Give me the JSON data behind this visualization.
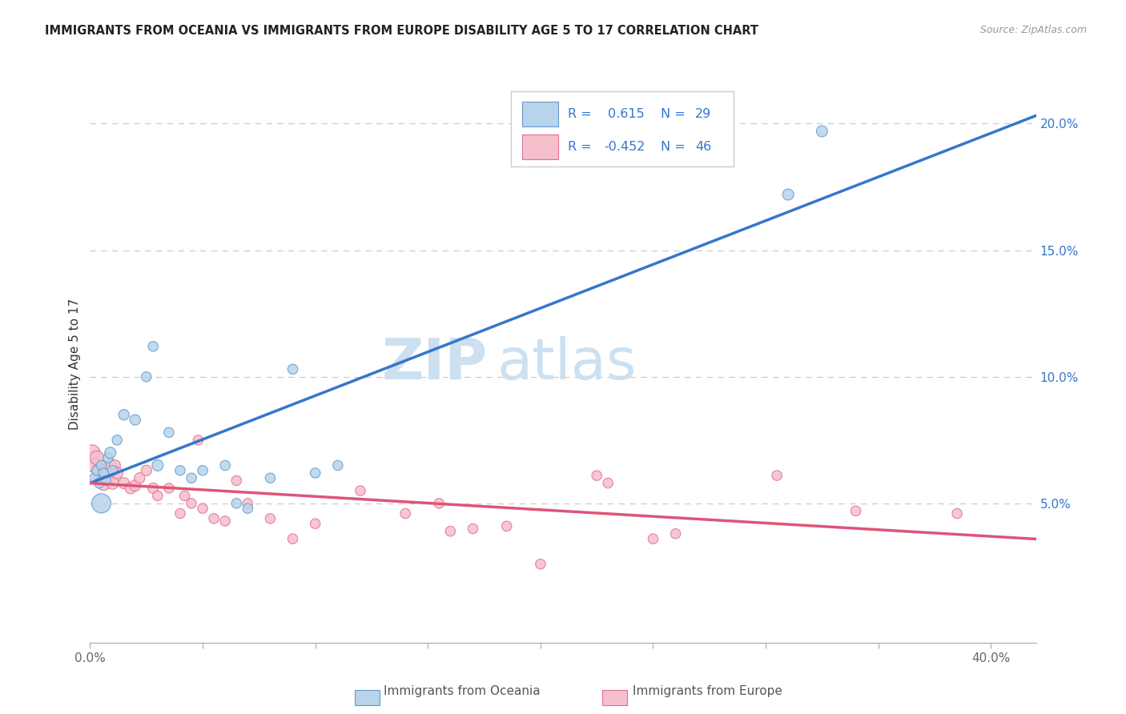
{
  "title": "IMMIGRANTS FROM OCEANIA VS IMMIGRANTS FROM EUROPE DISABILITY AGE 5 TO 17 CORRELATION CHART",
  "source": "Source: ZipAtlas.com",
  "ylabel": "Disability Age 5 to 17",
  "xlim": [
    0.0,
    0.42
  ],
  "ylim": [
    -0.005,
    0.215
  ],
  "xtick_vals": [
    0.0,
    0.05,
    0.1,
    0.15,
    0.2,
    0.25,
    0.3,
    0.35,
    0.4
  ],
  "ytick_right_vals": [
    0.05,
    0.1,
    0.15,
    0.2
  ],
  "ytick_right_labels": [
    "5.0%",
    "10.0%",
    "15.0%",
    "20.0%"
  ],
  "color_oceania_fill": "#b8d4ea",
  "color_oceania_edge": "#6699cc",
  "color_europe_fill": "#f5bfcc",
  "color_europe_edge": "#e07090",
  "line_color_oceania": "#3377cc",
  "line_color_europe": "#dd5577",
  "legend_text_color": "#3377cc",
  "watermark_zip_color": "#cce0f0",
  "watermark_atlas_color": "#cce0f0",
  "oceania_x": [
    0.002,
    0.003,
    0.004,
    0.005,
    0.006,
    0.007,
    0.008,
    0.009,
    0.01,
    0.012,
    0.015,
    0.02,
    0.025,
    0.028,
    0.03,
    0.035,
    0.04,
    0.045,
    0.05,
    0.06,
    0.065,
    0.07,
    0.08,
    0.09,
    0.1,
    0.11,
    0.31,
    0.325,
    0.005
  ],
  "oceania_y": [
    0.06,
    0.063,
    0.058,
    0.065,
    0.062,
    0.059,
    0.068,
    0.07,
    0.063,
    0.075,
    0.085,
    0.083,
    0.1,
    0.112,
    0.065,
    0.078,
    0.063,
    0.06,
    0.063,
    0.065,
    0.05,
    0.048,
    0.06,
    0.103,
    0.062,
    0.065,
    0.172,
    0.197,
    0.05
  ],
  "oceania_sizes": [
    80,
    80,
    80,
    80,
    80,
    80,
    80,
    100,
    80,
    80,
    90,
    90,
    80,
    80,
    100,
    80,
    80,
    80,
    80,
    80,
    80,
    80,
    80,
    80,
    80,
    80,
    100,
    100,
    300
  ],
  "europe_x": [
    0.001,
    0.002,
    0.003,
    0.004,
    0.005,
    0.006,
    0.007,
    0.008,
    0.009,
    0.01,
    0.011,
    0.012,
    0.015,
    0.018,
    0.02,
    0.022,
    0.025,
    0.028,
    0.03,
    0.035,
    0.04,
    0.042,
    0.045,
    0.048,
    0.05,
    0.055,
    0.06,
    0.065,
    0.07,
    0.08,
    0.09,
    0.1,
    0.12,
    0.14,
    0.155,
    0.16,
    0.17,
    0.185,
    0.2,
    0.225,
    0.23,
    0.25,
    0.26,
    0.305,
    0.34,
    0.385
  ],
  "europe_y": [
    0.07,
    0.065,
    0.068,
    0.063,
    0.06,
    0.058,
    0.063,
    0.06,
    0.065,
    0.058,
    0.065,
    0.062,
    0.058,
    0.056,
    0.057,
    0.06,
    0.063,
    0.056,
    0.053,
    0.056,
    0.046,
    0.053,
    0.05,
    0.075,
    0.048,
    0.044,
    0.043,
    0.059,
    0.05,
    0.044,
    0.036,
    0.042,
    0.055,
    0.046,
    0.05,
    0.039,
    0.04,
    0.041,
    0.026,
    0.061,
    0.058,
    0.036,
    0.038,
    0.061,
    0.047,
    0.046
  ],
  "europe_sizes": [
    200,
    180,
    160,
    150,
    200,
    170,
    150,
    140,
    130,
    120,
    100,
    110,
    100,
    100,
    100,
    90,
    90,
    90,
    80,
    80,
    80,
    80,
    80,
    80,
    80,
    80,
    80,
    80,
    80,
    80,
    80,
    80,
    80,
    80,
    80,
    80,
    80,
    80,
    80,
    80,
    80,
    80,
    80,
    80,
    80,
    80
  ]
}
